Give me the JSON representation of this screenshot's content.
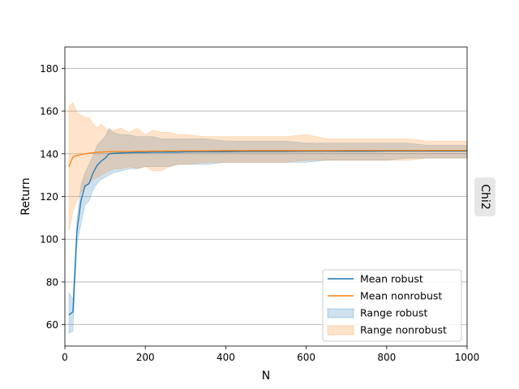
{
  "chart_data": {
    "type": "line",
    "title": "",
    "xlabel": "N",
    "ylabel": "Return",
    "facet_label": "Chi2",
    "xlim": [
      0,
      1000
    ],
    "ylim": [
      50,
      190
    ],
    "xticks": [
      0,
      200,
      400,
      600,
      800,
      1000
    ],
    "yticks": [
      60,
      80,
      100,
      120,
      140,
      160,
      180
    ],
    "grid": "horizontal",
    "legend_position": "lower-right",
    "colors": {
      "robust": "#1f77b4",
      "nonrobust": "#ff7f0e"
    },
    "x": [
      10,
      20,
      30,
      40,
      50,
      60,
      70,
      80,
      90,
      100,
      110,
      120,
      140,
      160,
      180,
      200,
      220,
      240,
      260,
      280,
      300,
      350,
      400,
      450,
      500,
      550,
      600,
      650,
      700,
      750,
      800,
      850,
      900,
      950,
      1000
    ],
    "series": [
      {
        "name": "Mean robust",
        "kind": "line",
        "color": "#1f77b4",
        "values": [
          64.5,
          66,
          104,
          118,
          125,
          126,
          131,
          134.5,
          136.5,
          138,
          140,
          140.2,
          140.4,
          140.5,
          140.6,
          140.6,
          140.7,
          140.7,
          140.8,
          140.8,
          140.9,
          141,
          141,
          141.1,
          141.1,
          141.1,
          141.2,
          141.2,
          141.2,
          141.2,
          141.3,
          141.3,
          141.3,
          141.3,
          141.3
        ]
      },
      {
        "name": "Mean nonrobust",
        "kind": "line",
        "color": "#ff7f0e",
        "values": [
          134,
          138.5,
          139.2,
          139.6,
          140,
          140.3,
          140.5,
          140.7,
          140.8,
          140.9,
          141,
          141,
          141.1,
          141.1,
          141.2,
          141.2,
          141.3,
          141.3,
          141.3,
          141.4,
          141.4,
          141.4,
          141.5,
          141.5,
          141.5,
          141.5,
          141.5,
          141.5,
          141.6,
          141.6,
          141.6,
          141.6,
          141.6,
          141.6,
          141.6
        ]
      },
      {
        "name": "Range robust",
        "kind": "band",
        "color": "#1f77b4",
        "lower": [
          56,
          57,
          98,
          107,
          116,
          118,
          123,
          126,
          128,
          129,
          130,
          131,
          132,
          133,
          133,
          134,
          134,
          134,
          134,
          135,
          135,
          135,
          136,
          136,
          136,
          136,
          136,
          137,
          137,
          137,
          137,
          138,
          138,
          138,
          138
        ],
        "upper": [
          75,
          72,
          109,
          125,
          131,
          135,
          139,
          144,
          146,
          148,
          152,
          150,
          149,
          149,
          148,
          148,
          148,
          147,
          147,
          147,
          147,
          147,
          146,
          146,
          146,
          146,
          145,
          145,
          145,
          145,
          145,
          145,
          144,
          144,
          144
        ]
      },
      {
        "name": "Range nonrobust",
        "kind": "band",
        "color": "#ff7f0e",
        "lower": [
          104,
          113,
          118,
          122,
          124,
          126,
          128,
          129,
          130,
          131,
          132,
          133,
          133,
          134,
          133,
          134,
          132,
          132,
          134,
          135,
          135,
          136,
          136,
          136,
          136,
          136,
          137,
          137,
          137,
          137,
          137,
          137,
          138,
          138,
          138
        ],
        "upper": [
          162,
          164,
          159,
          158,
          157,
          157,
          154,
          152,
          154,
          152,
          151,
          151,
          152,
          150,
          152,
          149,
          151,
          150,
          150,
          149,
          149,
          148,
          148,
          148,
          148,
          148,
          149,
          147,
          147,
          147,
          147,
          147,
          146,
          146,
          146
        ]
      }
    ]
  }
}
